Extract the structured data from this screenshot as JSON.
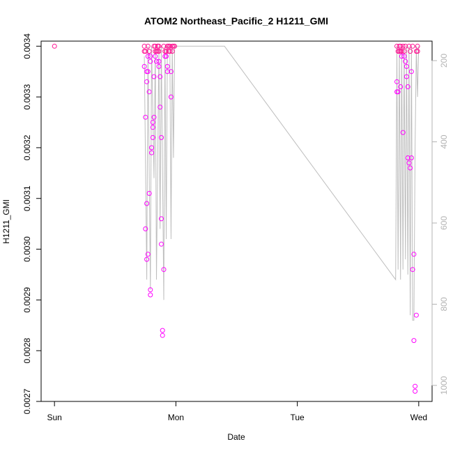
{
  "chart_data": {
    "type": "scatter",
    "title": "ATOM2 Northeast_Pacific_2 H1211_GMI",
    "xlabel": "Date",
    "ylabel": "H1211_GMI",
    "x_ticks": [
      "Sun",
      "Mon",
      "Tue",
      "Wed"
    ],
    "x_tick_days": [
      0,
      1,
      2,
      3
    ],
    "xlim_days": [
      -0.11,
      3.11
    ],
    "ylim": [
      0.0027,
      0.00341
    ],
    "y_ticks": [
      0.0027,
      0.0028,
      0.0029,
      0.003,
      0.0031,
      0.0032,
      0.0033,
      0.0034
    ],
    "y_tick_labels": [
      "0.0027",
      "0.0028",
      "0.0029",
      "0.0030",
      "0.0031",
      "0.0032",
      "0.0033",
      "0.0034"
    ],
    "secondary_axis": {
      "label_color": "#b3b3b3",
      "ticks": [
        200,
        400,
        600,
        800,
        1000
      ],
      "tick_labels": [
        "200",
        "400",
        "600",
        "800",
        "1000"
      ],
      "reversed": true
    },
    "marker_color": "#ff00ff",
    "marker_color_alt": "#ff1493",
    "series": [
      {
        "values_x_days": [
          0.0,
          0.74,
          0.74,
          0.74,
          0.75,
          0.75,
          0.75,
          0.76,
          0.76,
          0.76,
          0.76,
          0.77,
          0.77,
          0.77,
          0.77,
          0.78,
          0.78,
          0.78,
          0.79,
          0.79,
          0.79,
          0.79,
          0.8,
          0.8,
          0.81,
          0.81,
          0.81,
          0.82,
          0.82,
          0.82,
          0.83,
          0.83,
          0.83,
          0.84,
          0.84,
          0.85,
          0.85,
          0.85,
          0.86,
          0.86,
          0.86,
          0.86,
          0.87,
          0.87,
          0.88,
          0.88,
          0.88,
          0.89,
          0.89,
          0.9,
          0.9,
          0.91,
          0.91,
          0.92,
          0.92,
          0.93,
          0.93,
          0.93,
          0.94,
          0.94,
          0.95,
          0.95,
          0.96,
          0.96,
          0.97,
          0.97,
          0.98,
          0.99,
          2.82,
          2.82,
          2.82,
          2.83,
          2.83,
          2.84,
          2.84,
          2.85,
          2.85,
          2.85,
          2.86,
          2.86,
          2.87,
          2.87,
          2.88,
          2.88,
          2.89,
          2.89,
          2.9,
          2.9,
          2.91,
          2.91,
          2.92,
          2.92,
          2.93,
          2.93,
          2.94,
          2.94,
          2.95,
          2.95,
          2.96,
          2.96,
          2.97,
          2.97,
          2.98,
          2.98,
          2.99,
          2.99
        ],
        "values_y": [
          0.0034,
          0.0034,
          0.00336,
          0.00339,
          0.00339,
          0.00326,
          0.00304,
          0.00298,
          0.00335,
          0.00333,
          0.00309,
          0.00299,
          0.00338,
          0.00335,
          0.0034,
          0.00339,
          0.00331,
          0.00311,
          0.00292,
          0.00291,
          0.00337,
          0.00338,
          0.0032,
          0.00319,
          0.00324,
          0.00322,
          0.00325,
          0.00326,
          0.0034,
          0.00334,
          0.00339,
          0.0034,
          0.00338,
          0.00337,
          0.00339,
          0.0034,
          0.0034,
          0.00339,
          0.00337,
          0.00336,
          0.0034,
          0.00339,
          0.00334,
          0.00328,
          0.00322,
          0.00306,
          0.00301,
          0.00284,
          0.00283,
          0.00296,
          0.0034,
          0.00339,
          0.00338,
          0.00338,
          0.00339,
          0.00336,
          0.00335,
          0.0034,
          0.0034,
          0.00339,
          0.00339,
          0.0034,
          0.0033,
          0.00335,
          0.0034,
          0.00339,
          0.0034,
          0.0034,
          0.0034,
          0.00331,
          0.00333,
          0.00331,
          0.00339,
          0.00339,
          0.0034,
          0.0034,
          0.00339,
          0.00332,
          0.00338,
          0.00339,
          0.00323,
          0.0034,
          0.00338,
          0.00339,
          0.00337,
          0.0034,
          0.00334,
          0.00336,
          0.00332,
          0.00318,
          0.00317,
          0.0034,
          0.00339,
          0.00316,
          0.00318,
          0.00335,
          0.0034,
          0.00296,
          0.00299,
          0.00282,
          0.00273,
          0.00272,
          0.00287,
          0.00339,
          0.00339,
          0.0034
        ]
      }
    ],
    "grey_line_x_days": [
      0.74,
      0.76,
      0.77,
      0.79,
      0.8,
      0.82,
      0.83,
      0.84,
      0.86,
      0.87,
      0.88,
      0.9,
      0.91,
      0.92,
      0.93,
      0.95,
      0.96,
      0.97,
      0.98,
      0.99,
      1.0,
      1.4,
      2.81,
      2.82,
      2.83,
      2.84,
      2.85,
      2.86,
      2.87,
      2.88,
      2.89,
      2.9,
      2.91,
      2.92,
      2.93,
      2.94,
      2.95,
      2.96,
      2.97,
      2.98,
      2.99,
      3.0
    ],
    "grey_line_y": [
      0.00338,
      0.00294,
      0.0034,
      0.00292,
      0.0034,
      0.00314,
      0.0034,
      0.00294,
      0.0034,
      0.00304,
      0.0034,
      0.0029,
      0.0034,
      0.00302,
      0.0034,
      0.0034,
      0.00302,
      0.0034,
      0.00318,
      0.0034,
      0.0034,
      0.0034,
      0.00294,
      0.0034,
      0.00296,
      0.0034,
      0.00294,
      0.0034,
      0.00296,
      0.0034,
      0.00298,
      0.0034,
      0.00295,
      0.0034,
      0.00287,
      0.0034,
      0.00286,
      0.00286,
      0.0032,
      0.0034,
      0.0033,
      0.0034
    ]
  }
}
